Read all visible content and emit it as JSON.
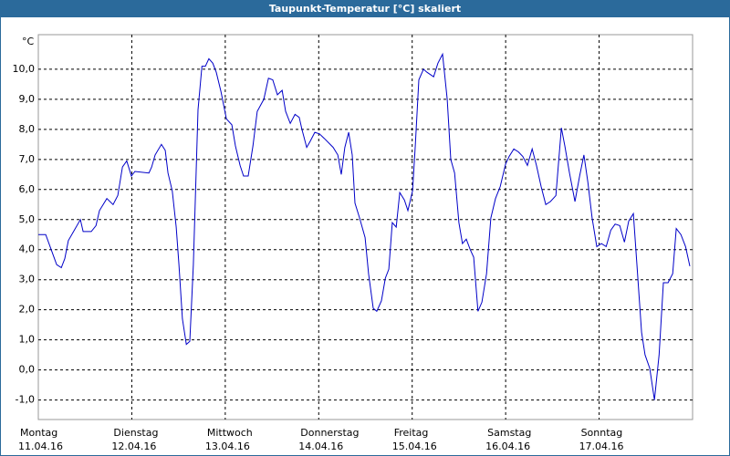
{
  "chart_data": {
    "type": "line",
    "title": "Taupunkt-Temperatur [°C] skaliert",
    "y_label": "°C",
    "color": "#0000c8",
    "grid": true,
    "xlim": [
      0,
      168
    ],
    "xticks": [
      {
        "value": 0,
        "label": "Montag",
        "date": "11.04.16"
      },
      {
        "value": 24,
        "label": "Dienstag",
        "date": "12.04.16"
      },
      {
        "value": 48,
        "label": "Mittwoch",
        "date": "13.04.16"
      },
      {
        "value": 72,
        "label": "Donnerstag",
        "date": "14.04.16"
      },
      {
        "value": 96,
        "label": "Freitag",
        "date": "15.04.16"
      },
      {
        "value": 120,
        "label": "Samstag",
        "date": "16.04.16"
      },
      {
        "value": 144,
        "label": "Sonntag",
        "date": "17.04.16"
      }
    ],
    "ylim": [
      -1.65,
      11.15
    ],
    "yticks": [
      {
        "value": -1,
        "label": "-1,0"
      },
      {
        "value": 0,
        "label": "0,0"
      },
      {
        "value": 1,
        "label": "1,0"
      },
      {
        "value": 2,
        "label": "2,0"
      },
      {
        "value": 3,
        "label": "3,0"
      },
      {
        "value": 4,
        "label": "4,0"
      },
      {
        "value": 5,
        "label": "5,0"
      },
      {
        "value": 6,
        "label": "6,0"
      },
      {
        "value": 7,
        "label": "7,0"
      },
      {
        "value": 8,
        "label": "8,0"
      },
      {
        "value": 9,
        "label": "9,0"
      },
      {
        "value": 10,
        "label": "10,0"
      }
    ],
    "x": [
      0,
      1.9,
      3.3,
      4.7,
      5.9,
      6.8,
      7.7,
      10.8,
      11.5,
      13.6,
      14.8,
      15.7,
      17.6,
      19.2,
      20.4,
      21.6,
      22.7,
      23.9,
      24.8,
      28.4,
      29.1,
      30.0,
      31.6,
      32.6,
      33.3,
      34.4,
      35.4,
      36.1,
      37.0,
      38.0,
      38.9,
      39.8,
      41.0,
      42.0,
      42.9,
      43.8,
      44.8,
      45.7,
      46.9,
      48.3,
      49.7,
      50.6,
      51.8,
      52.7,
      53.9,
      55.1,
      56.2,
      57.9,
      59.1,
      60.2,
      61.4,
      62.6,
      63.5,
      64.7,
      65.9,
      67.0,
      67.7,
      68.9,
      69.8,
      71.0,
      72.2,
      73.4,
      75.7,
      76.9,
      77.8,
      78.7,
      79.7,
      80.6,
      81.3,
      82.5,
      83.9,
      84.8,
      86.0,
      86.9,
      88.1,
      89.1,
      90.0,
      90.9,
      91.9,
      92.8,
      94.0,
      94.9,
      96.1,
      96.8,
      97.7,
      98.9,
      99.8,
      101.5,
      102.6,
      103.8,
      105.0,
      105.9,
      106.9,
      108.0,
      108.9,
      109.9,
      110.9,
      111.8,
      112.9,
      113.9,
      115.1,
      116.2,
      117.4,
      118.6,
      120.0,
      120.9,
      122.1,
      123.3,
      124.4,
      125.6,
      126.8,
      127.9,
      129.1,
      130.3,
      131.5,
      132.9,
      134.3,
      135.2,
      136.4,
      137.8,
      139.0,
      140.1,
      141.1,
      142.2,
      143.4,
      144.6,
      145.8,
      147.0,
      148.1,
      149.3,
      150.5,
      151.6,
      152.8,
      153.7,
      154.9,
      155.8,
      157.0,
      158.2,
      159.4,
      160.5,
      161.7,
      162.9,
      163.8,
      165.0,
      166.2,
      167.3
    ],
    "values": [
      4.5,
      4.5,
      4.0,
      3.5,
      3.4,
      3.7,
      4.3,
      5.0,
      4.6,
      4.6,
      4.8,
      5.3,
      5.7,
      5.5,
      5.8,
      6.75,
      6.95,
      6.45,
      6.6,
      6.55,
      6.75,
      7.15,
      7.5,
      7.3,
      6.55,
      5.95,
      4.75,
      3.5,
      1.7,
      0.85,
      0.95,
      3.5,
      8.65,
      10.1,
      10.1,
      10.35,
      10.2,
      9.9,
      9.25,
      8.35,
      8.15,
      7.45,
      6.8,
      6.45,
      6.45,
      7.45,
      8.6,
      9.0,
      9.7,
      9.65,
      9.15,
      9.3,
      8.6,
      8.2,
      8.5,
      8.4,
      8.0,
      7.4,
      7.6,
      7.9,
      7.85,
      7.7,
      7.4,
      7.15,
      6.5,
      7.4,
      7.9,
      7.15,
      5.55,
      5.05,
      4.4,
      3.2,
      2.05,
      1.95,
      2.3,
      3.05,
      3.35,
      4.9,
      4.75,
      5.9,
      5.65,
      5.3,
      5.95,
      7.45,
      9.65,
      10.0,
      9.9,
      9.75,
      10.2,
      10.5,
      9.0,
      7.0,
      6.55,
      4.9,
      4.2,
      4.35,
      4.0,
      3.75,
      1.95,
      2.25,
      3.2,
      5.05,
      5.7,
      6.1,
      6.85,
      7.1,
      7.35,
      7.25,
      7.1,
      6.8,
      7.35,
      6.8,
      6.1,
      5.5,
      5.6,
      5.8,
      8.05,
      7.45,
      6.55,
      5.6,
      6.45,
      7.15,
      6.25,
      5.05,
      4.1,
      4.2,
      4.1,
      4.65,
      4.85,
      4.8,
      4.25,
      4.95,
      5.2,
      3.5,
      1.25,
      0.5,
      0.05,
      -1.0,
      0.5,
      2.9,
      2.9,
      3.2,
      4.7,
      4.5,
      4.1,
      3.45
    ]
  }
}
